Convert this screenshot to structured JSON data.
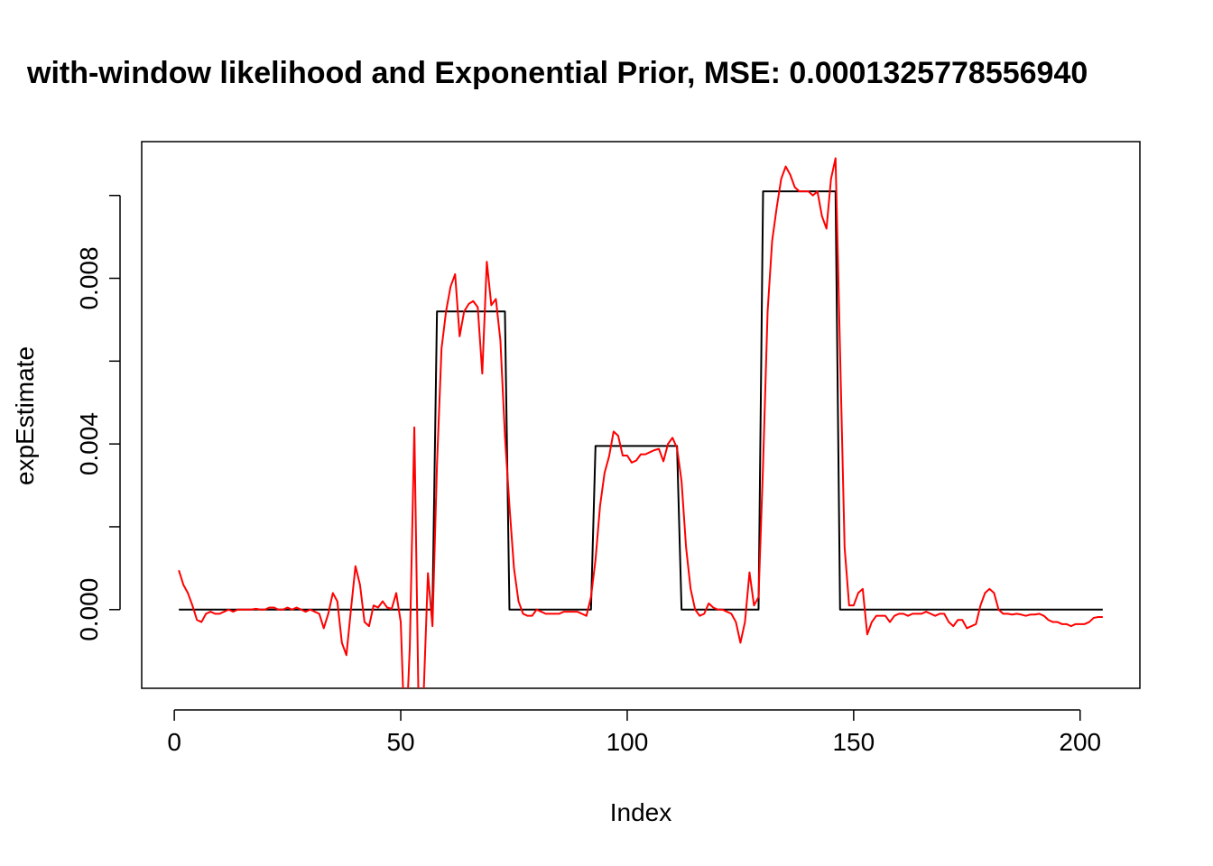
{
  "chart_data": {
    "type": "line",
    "title": "with-window likelihood and Exponential Prior, MSE: 0.0001325778556940",
    "xlabel": "Index",
    "ylabel": "expEstimate",
    "xlim": [
      -7.2,
      213.2
    ],
    "ylim": [
      -0.0019,
      0.0113
    ],
    "x_ticks": [
      0,
      50,
      100,
      150,
      200
    ],
    "x_tick_labels": [
      "0",
      "50",
      "100",
      "150",
      "200"
    ],
    "y_ticks": [
      -0.002,
      0.0,
      0.002,
      0.004,
      0.006,
      0.008,
      0.01
    ],
    "y_tick_labels": [
      "0.000",
      "0.004",
      "0.008"
    ],
    "y_tick_label_values": [
      0.0,
      0.004,
      0.008
    ],
    "grid": false,
    "legend": "none",
    "series": [
      {
        "color": "#000000",
        "style": "step",
        "x": [
          1,
          57,
          58,
          73,
          74,
          92,
          93,
          111,
          112,
          129,
          130,
          146,
          147,
          205
        ],
        "y": [
          0,
          0,
          0.0072,
          0.0072,
          0,
          0,
          0.00395,
          0.00395,
          0,
          0,
          0.0101,
          0.0101,
          0,
          0
        ]
      },
      {
        "color": "#ff0000",
        "style": "line",
        "x": [
          1,
          2,
          3,
          4,
          5,
          6,
          7,
          8,
          9,
          10,
          11,
          12,
          13,
          14,
          15,
          16,
          17,
          18,
          19,
          20,
          21,
          22,
          23,
          24,
          25,
          26,
          27,
          28,
          29,
          30,
          31,
          32,
          33,
          34,
          35,
          36,
          37,
          38,
          39,
          40,
          41,
          42,
          43,
          44,
          45,
          46,
          47,
          48,
          49,
          50,
          51,
          52,
          53,
          54,
          55,
          56,
          57,
          58,
          59,
          60,
          61,
          62,
          63,
          64,
          65,
          66,
          67,
          68,
          69,
          70,
          71,
          72,
          73,
          74,
          75,
          76,
          77,
          78,
          79,
          80,
          81,
          82,
          83,
          84,
          85,
          86,
          87,
          88,
          89,
          90,
          91,
          92,
          93,
          94,
          95,
          96,
          97,
          98,
          99,
          100,
          101,
          102,
          103,
          104,
          105,
          106,
          107,
          108,
          109,
          110,
          111,
          112,
          113,
          114,
          115,
          116,
          117,
          118,
          119,
          120,
          121,
          122,
          123,
          124,
          125,
          126,
          127,
          128,
          129,
          130,
          131,
          132,
          133,
          134,
          135,
          136,
          137,
          138,
          139,
          140,
          141,
          142,
          143,
          144,
          145,
          146,
          147,
          148,
          149,
          150,
          151,
          152,
          153,
          154,
          155,
          156,
          157,
          158,
          159,
          160,
          161,
          162,
          163,
          164,
          165,
          166,
          167,
          168,
          169,
          170,
          171,
          172,
          173,
          174,
          175,
          176,
          177,
          178,
          179,
          180,
          181,
          182,
          183,
          184,
          185,
          186,
          187,
          188,
          189,
          190,
          191,
          192,
          193,
          194,
          195,
          196,
          197,
          198,
          199,
          200,
          201,
          202,
          203,
          204,
          205
        ],
        "y": [
          0.00095,
          0.0006,
          0.0004,
          0.0001,
          -0.00025,
          -0.0003,
          -0.0001,
          -5e-05,
          -0.0001,
          -0.0001,
          -5e-05,
          0,
          -5e-05,
          0,
          0,
          0,
          0,
          2e-05,
          0,
          0,
          5e-05,
          5e-05,
          0,
          0,
          5e-05,
          0,
          5e-05,
          0,
          -5e-05,
          0,
          -5e-05,
          -0.0001,
          -0.00045,
          -0.0001,
          0.0004,
          0.0002,
          -0.0008,
          -0.0011,
          0,
          0.00105,
          0.0006,
          -0.0003,
          -0.0004,
          0.0001,
          5e-05,
          0.0002,
          5e-05,
          2e-05,
          0.0004,
          -0.0003,
          -0.0035,
          -0.0009,
          0.0044,
          -0.0028,
          -0.0022,
          0.00088,
          -0.0004,
          0.0035,
          0.0063,
          0.0072,
          0.0078,
          0.0081,
          0.0066,
          0.0072,
          0.00738,
          0.00745,
          0.0073,
          0.0057,
          0.0084,
          0.00735,
          0.0075,
          0.0065,
          0.0042,
          0.0025,
          0.001,
          0.0002,
          -0.0001,
          -0.00015,
          -0.00015,
          0,
          -5e-05,
          -0.0001,
          -0.0001,
          -0.0001,
          -0.0001,
          -5e-05,
          -5e-05,
          -5e-05,
          -5e-05,
          -0.0001,
          -0.00015,
          0.0003,
          0.0012,
          0.0025,
          0.0033,
          0.0037,
          0.0043,
          0.0042,
          0.00372,
          0.00372,
          0.00355,
          0.0036,
          0.00375,
          0.00375,
          0.0038,
          0.00385,
          0.00388,
          0.00358,
          0.004,
          0.00415,
          0.0039,
          0.0031,
          0.0015,
          0.0005,
          0,
          -0.00015,
          -0.0001,
          0.00015,
          5e-05,
          0,
          0,
          -5e-05,
          -0.0001,
          -0.0003,
          -0.0008,
          -0.0003,
          0.0009,
          0.0001,
          0.0003,
          0.0035,
          0.0072,
          0.0089,
          0.0097,
          0.0104,
          0.0107,
          0.0105,
          0.0102,
          0.0101,
          0.0101,
          0.0101,
          0.01,
          0.0101,
          0.0095,
          0.0092,
          0.0104,
          0.0109,
          0.0062,
          0.0015,
          0.0001,
          0.0001,
          0.0004,
          0.0005,
          -0.0006,
          -0.0003,
          -0.00015,
          -0.00015,
          -0.00015,
          -0.0003,
          -0.00015,
          -0.0001,
          -0.0001,
          -0.00015,
          -0.0001,
          -0.0001,
          -0.0001,
          -5e-05,
          -0.0001,
          -0.00015,
          -0.0001,
          -0.0001,
          -0.0003,
          -0.0004,
          -0.00025,
          -0.00025,
          -0.00045,
          -0.0004,
          -0.00035,
          0.0001,
          0.0004,
          0.0005,
          0.0004,
          0,
          -0.0001,
          -0.0001,
          -0.00012,
          -0.0001,
          -0.00012,
          -0.00015,
          -0.00012,
          -0.00012,
          -0.0001,
          -0.00015,
          -0.00025,
          -0.0003,
          -0.0003,
          -0.00035,
          -0.00035,
          -0.0004,
          -0.00035,
          -0.00035,
          -0.00035,
          -0.0003,
          -0.0002,
          -0.00018,
          -0.00018
        ]
      }
    ]
  }
}
